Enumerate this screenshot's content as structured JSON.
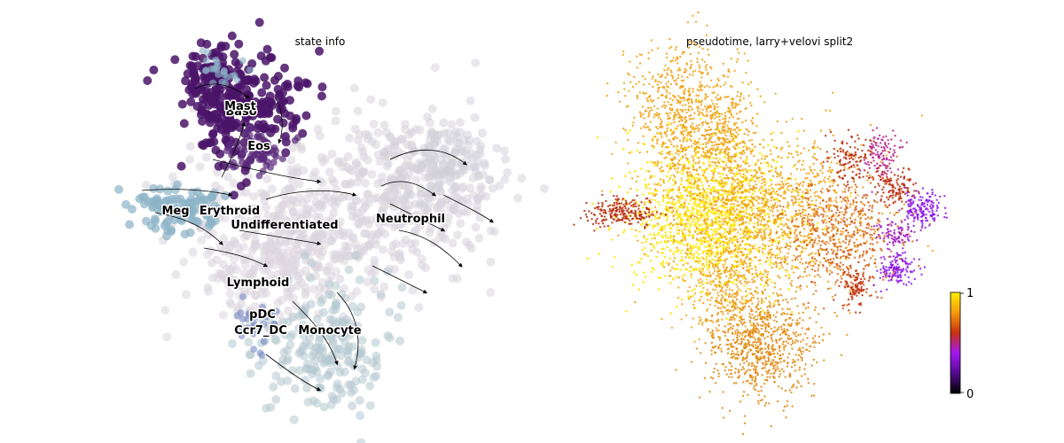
{
  "panels": [
    {
      "title": "state info"
    },
    {
      "title": "pseudotime, larry+velovi split2"
    }
  ],
  "chart_data": [
    {
      "type": "scatter",
      "title": "state info",
      "axes_visible": false,
      "overlay": "velocity streamlines",
      "categories": [
        {
          "label": "Mast",
          "color": "#4a1468"
        },
        {
          "label": "Baso",
          "color": "#4a1468"
        },
        {
          "label": "Eos",
          "color": "#5a2a7a"
        },
        {
          "label": "Meg",
          "color": "#8cb4c8"
        },
        {
          "label": "Erythroid",
          "color": "#8cb4c8"
        },
        {
          "label": "Undifferentiated",
          "color": "#d8d3dc"
        },
        {
          "label": "Neutrophil",
          "color": "#d6d6de"
        },
        {
          "label": "Lymphoid",
          "color": "#9ea8d6"
        },
        {
          "label": "pDC",
          "color": "#8a9ed2"
        },
        {
          "label": "Ccr7_DC",
          "color": "#7a8cc6"
        },
        {
          "label": "Monocyte",
          "color": "#b4c8d0"
        }
      ]
    },
    {
      "type": "scatter",
      "title": "pseudotime, larry+velovi split2",
      "axes_visible": false,
      "colormap": "gnuplot",
      "colorbar": {
        "min": 0,
        "max": 1,
        "ticks": [
          "0",
          "1"
        ]
      }
    }
  ],
  "colors": {
    "mast_purple": "#4a1468",
    "meg_blue": "#8cb4c8",
    "undiff_gray": "#d8d3dc",
    "monocyte_blue": "#b4c8d0",
    "pt_yellow": "#ffe81a",
    "pt_orange": "#f0a010",
    "pt_red": "#b82a0a",
    "pt_magenta": "#b4238c",
    "pt_violet": "#8c18e6"
  }
}
